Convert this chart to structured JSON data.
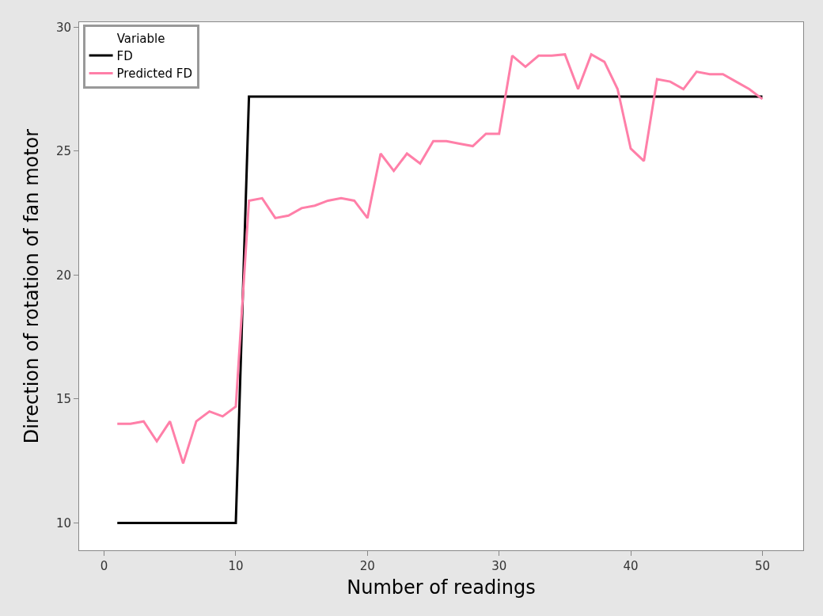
{
  "chart_data": {
    "type": "line",
    "xlabel": "Number of readings",
    "ylabel": "Direction of rotation of fan motor",
    "legend_title": "Variable",
    "legend": "top left",
    "grid": false,
    "marker": "none",
    "line_style": "solid",
    "x": [
      1,
      2,
      3,
      4,
      5,
      6,
      7,
      8,
      9,
      10,
      11,
      12,
      13,
      14,
      15,
      16,
      17,
      18,
      19,
      20,
      21,
      22,
      23,
      24,
      25,
      26,
      27,
      28,
      29,
      30,
      31,
      32,
      33,
      34,
      35,
      36,
      37,
      38,
      39,
      40,
      41,
      42,
      43,
      44,
      45,
      46,
      47,
      48,
      49,
      50
    ],
    "xlim": [
      -1.9,
      53.1
    ],
    "xticks": [
      0,
      10,
      20,
      30,
      40,
      50
    ],
    "ylim": [
      8.9,
      30.2
    ],
    "yticks": [
      10,
      15,
      20,
      25,
      30
    ],
    "series": [
      {
        "name": "FD",
        "color": "#000000",
        "values": [
          10,
          10,
          10,
          10,
          10,
          10,
          10,
          10,
          10,
          10,
          27.2,
          27.2,
          27.2,
          27.2,
          27.2,
          27.2,
          27.2,
          27.2,
          27.2,
          27.2,
          27.2,
          27.2,
          27.2,
          27.2,
          27.2,
          27.2,
          27.2,
          27.2,
          27.2,
          27.2,
          27.2,
          27.2,
          27.2,
          27.2,
          27.2,
          27.2,
          27.2,
          27.2,
          27.2,
          27.2,
          27.2,
          27.2,
          27.2,
          27.2,
          27.2,
          27.2,
          27.2,
          27.2,
          27.2,
          27.2
        ]
      },
      {
        "name": "Predicted FD",
        "color": "#ff7fa8",
        "values": [
          14.0,
          14.0,
          14.1,
          13.3,
          14.1,
          12.4,
          14.1,
          14.5,
          14.3,
          14.7,
          23.0,
          23.1,
          22.3,
          22.4,
          22.7,
          22.8,
          23.0,
          23.1,
          23.0,
          22.3,
          24.9,
          24.2,
          24.9,
          24.5,
          25.4,
          25.4,
          25.3,
          25.2,
          25.7,
          25.7,
          28.85,
          28.4,
          28.85,
          28.85,
          28.9,
          27.5,
          28.9,
          28.6,
          27.5,
          25.1,
          24.6,
          27.9,
          27.8,
          27.5,
          28.2,
          28.1,
          28.1,
          27.8,
          27.5,
          27.1
        ]
      }
    ]
  }
}
